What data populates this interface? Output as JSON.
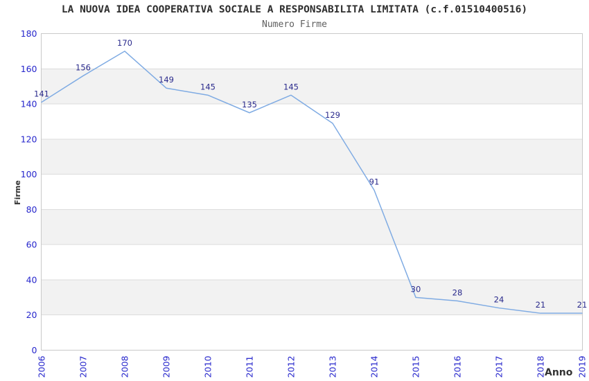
{
  "chart_data": {
    "type": "line",
    "title": "LA NUOVA IDEA COOPERATIVA SOCIALE A RESPONSABILITA LIMITATA (c.f.01510400516)",
    "subtitle": "Numero Firme",
    "xlabel": "Anno",
    "ylabel": "Firme",
    "categories": [
      2006,
      2007,
      2008,
      2009,
      2010,
      2011,
      2012,
      2013,
      2014,
      2015,
      2016,
      2017,
      2018,
      2019
    ],
    "series": [
      {
        "name": "Numero Firme",
        "values": [
          141,
          156,
          170,
          149,
          145,
          135,
          145,
          129,
          91,
          30,
          28,
          24,
          21,
          21
        ]
      }
    ],
    "ylim": [
      0,
      180
    ],
    "ytick_step": 20,
    "grid": "horizontal-gridlines-with-alternating-bands",
    "legend_position": "none",
    "colors": {
      "line": "#7fabe3",
      "data_label": "#2a2a8c",
      "tick_label": "#2626cc",
      "axis_title": "#333333",
      "title": "#2e2e2e",
      "subtitle": "#5f5f5f",
      "band": "#f2f2f2",
      "gridline": "#dcdcdc",
      "plot_border": "#c9c9c9",
      "background": "#ffffff"
    }
  }
}
